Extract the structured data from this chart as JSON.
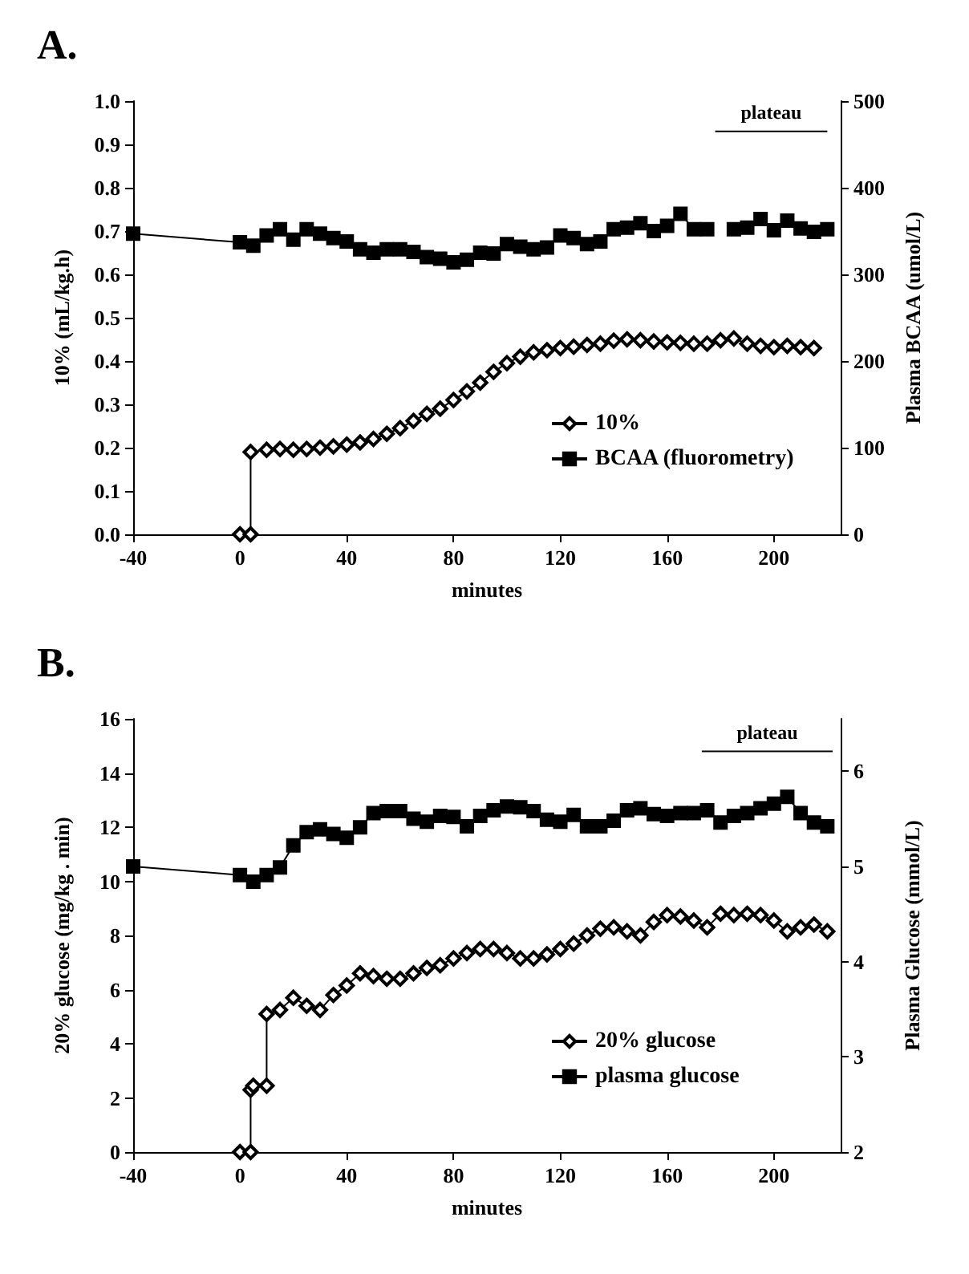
{
  "chart_data": [
    {
      "type": "line",
      "title": "A.",
      "xlabel": "minutes",
      "ylabel": "10% (mL/kg.h)",
      "y2label": "Plasma BCAA (umol/L)",
      "xlim": [
        -40,
        225
      ],
      "xticks": [
        -40,
        0,
        40,
        80,
        120,
        160,
        200
      ],
      "ylim": [
        0,
        1
      ],
      "yticks": [
        {
          "value": 0,
          "label": "0.0"
        },
        {
          "value": 0.1,
          "label": "0.1"
        },
        {
          "value": 0.2,
          "label": "0.2"
        },
        {
          "value": 0.3,
          "label": "0.3"
        },
        {
          "value": 0.4,
          "label": "0.4"
        },
        {
          "value": 0.5,
          "label": "0.5"
        },
        {
          "value": 0.6,
          "label": "0.6"
        },
        {
          "value": 0.7,
          "label": "0.7"
        },
        {
          "value": 0.8,
          "label": "0.8"
        },
        {
          "value": 0.9,
          "label": "0.9"
        },
        {
          "value": 1,
          "label": "1.0"
        }
      ],
      "y2lim": [
        0,
        500
      ],
      "y2ticks": [
        0,
        100,
        200,
        300,
        400,
        500
      ],
      "grid": false,
      "legend": "bottom right",
      "series": [
        {
          "name": "plateau",
          "color": "#000000",
          "marker": "none",
          "x": [
            178,
            220
          ],
          "values": [
            0.93,
            0.93
          ]
        },
        {
          "name": "10%",
          "color": "#000000",
          "marker": "diamond",
          "x": [
            0,
            4,
            4,
            10,
            15,
            20,
            25,
            30,
            35,
            40,
            45,
            50,
            55,
            60,
            65,
            70,
            75,
            80,
            85,
            90,
            95,
            100,
            105,
            110,
            115,
            120,
            125,
            130,
            135,
            140,
            145,
            150,
            155,
            160,
            165,
            170,
            175,
            180,
            185,
            190,
            195,
            200,
            205,
            210,
            215
          ],
          "values": [
            0,
            0,
            0.19,
            0.195,
            0.197,
            0.195,
            0.197,
            0.2,
            0.203,
            0.207,
            0.212,
            0.22,
            0.232,
            0.245,
            0.262,
            0.278,
            0.29,
            0.31,
            0.33,
            0.35,
            0.375,
            0.395,
            0.41,
            0.42,
            0.425,
            0.43,
            0.433,
            0.437,
            0.44,
            0.447,
            0.45,
            0.448,
            0.445,
            0.443,
            0.442,
            0.44,
            0.44,
            0.448,
            0.452,
            0.44,
            0.435,
            0.432,
            0.435,
            0.432,
            0.43
          ]
        },
        {
          "name": "BCAA (fluorometry)",
          "color": "#000000",
          "marker": "square",
          "axis": "y2",
          "x": [
            -40,
            0,
            5,
            10,
            15,
            20,
            25,
            30,
            35,
            40,
            45,
            50,
            55,
            60,
            65,
            70,
            75,
            80,
            85,
            90,
            95,
            100,
            105,
            110,
            115,
            120,
            125,
            130,
            135,
            140,
            145,
            150,
            155,
            160,
            165,
            170,
            175,
            180,
            185,
            190,
            195,
            200,
            205,
            210,
            215,
            220
          ],
          "values": [
            347,
            337,
            333,
            345,
            352,
            340,
            352,
            347,
            342,
            338,
            329,
            325,
            329,
            329,
            326,
            320,
            318,
            314,
            317,
            325,
            324,
            335,
            332,
            329,
            331,
            345,
            342,
            335,
            338,
            352,
            354,
            359,
            350,
            356,
            370,
            352,
            352,
            null,
            352,
            354,
            364,
            351,
            362,
            353,
            349,
            352
          ]
        }
      ]
    },
    {
      "type": "line",
      "title": "B.",
      "xlabel": "minutes",
      "ylabel": "20% glucose (mg/kg . min)",
      "y2label": "Plasma Glucose (mmol/L)",
      "xlim": [
        -40,
        225
      ],
      "xticks": [
        -40,
        0,
        40,
        80,
        120,
        160,
        200
      ],
      "ylim": [
        0,
        16
      ],
      "yticks": [
        0,
        2,
        4,
        6,
        8,
        10,
        12,
        14,
        16
      ],
      "y2lim": [
        2,
        6.55
      ],
      "y2ticks": [
        2,
        3,
        4,
        5,
        6
      ],
      "grid": false,
      "legend": "bottom right",
      "series": [
        {
          "name": "plateau",
          "color": "#000000",
          "marker": "none",
          "x": [
            173,
            222
          ],
          "values": [
            14.8,
            14.8
          ]
        },
        {
          "name": "20% glucose",
          "color": "#000000",
          "marker": "diamond",
          "x": [
            0,
            4,
            4,
            5,
            10,
            10,
            15,
            20,
            25,
            30,
            35,
            40,
            45,
            50,
            55,
            60,
            65,
            70,
            75,
            80,
            85,
            90,
            95,
            100,
            105,
            110,
            115,
            120,
            125,
            130,
            135,
            140,
            145,
            150,
            155,
            160,
            165,
            170,
            175,
            180,
            185,
            190,
            195,
            200,
            205,
            210,
            215,
            220
          ],
          "values": [
            0,
            0,
            2.3,
            2.45,
            2.45,
            5.1,
            5.25,
            5.7,
            5.4,
            5.25,
            5.8,
            6.15,
            6.6,
            6.5,
            6.4,
            6.4,
            6.6,
            6.8,
            6.9,
            7.15,
            7.35,
            7.5,
            7.5,
            7.35,
            7.15,
            7.15,
            7.3,
            7.5,
            7.7,
            8.0,
            8.25,
            8.3,
            8.15,
            8.0,
            8.5,
            8.75,
            8.7,
            8.55,
            8.3,
            8.8,
            8.75,
            8.8,
            8.75,
            8.55,
            8.15,
            8.3,
            8.4,
            8.15
          ]
        },
        {
          "name": "plasma glucose",
          "color": "#000000",
          "marker": "square",
          "axis": "y2",
          "x": [
            -40,
            0,
            5,
            10,
            15,
            20,
            25,
            30,
            35,
            40,
            45,
            50,
            55,
            60,
            65,
            70,
            75,
            80,
            85,
            90,
            95,
            100,
            105,
            110,
            115,
            120,
            125,
            130,
            135,
            140,
            145,
            150,
            155,
            160,
            165,
            170,
            175,
            180,
            185,
            190,
            195,
            200,
            205,
            210,
            215,
            220
          ],
          "values": [
            5.0,
            4.91,
            4.84,
            4.91,
            4.99,
            5.22,
            5.36,
            5.39,
            5.34,
            5.3,
            5.41,
            5.56,
            5.58,
            5.58,
            5.5,
            5.47,
            5.53,
            5.52,
            5.42,
            5.53,
            5.59,
            5.63,
            5.62,
            5.58,
            5.49,
            5.47,
            5.54,
            5.42,
            5.42,
            5.48,
            5.59,
            5.61,
            5.55,
            5.53,
            5.56,
            5.56,
            5.59,
            5.46,
            5.53,
            5.56,
            5.61,
            5.66,
            5.73,
            5.56,
            5.46,
            5.42
          ]
        }
      ]
    }
  ]
}
